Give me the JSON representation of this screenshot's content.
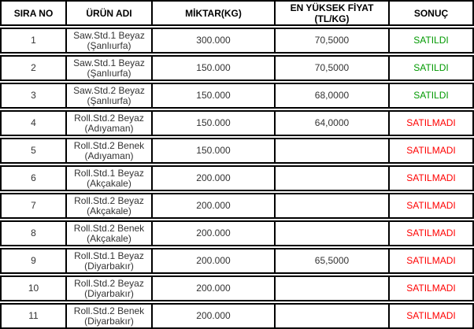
{
  "table": {
    "columns": [
      {
        "label": "SIRA NO"
      },
      {
        "label": "ÜRÜN ADI"
      },
      {
        "label": "MİKTAR(KG)"
      },
      {
        "label": "EN YÜKSEK FİYAT",
        "label2": "(TL/KG)"
      },
      {
        "label": "SONUÇ"
      }
    ],
    "rows": [
      {
        "sira": "1",
        "urun_name": "Saw.Std.1 Beyaz",
        "urun_origin": "(Şanlıurfa)",
        "miktar": "300.000",
        "fiyat": "70,5000",
        "sonuc": "SATILDI",
        "sonuc_color": "sold"
      },
      {
        "sira": "2",
        "urun_name": "Saw.Std.1 Beyaz",
        "urun_origin": "(Şanlıurfa)",
        "miktar": "150.000",
        "fiyat": "70,5000",
        "sonuc": "SATILDI",
        "sonuc_color": "sold"
      },
      {
        "sira": "3",
        "urun_name": "Saw.Std.2 Beyaz",
        "urun_origin": "(Şanlıurfa)",
        "miktar": "150.000",
        "fiyat": "68,0000",
        "sonuc": "SATILDI",
        "sonuc_color": "sold"
      },
      {
        "sira": "4",
        "urun_name": "Roll.Std.2 Beyaz",
        "urun_origin": "(Adıyaman)",
        "miktar": "150.000",
        "fiyat": "64,0000",
        "sonuc": "SATILMADI",
        "sonuc_color": "unsold"
      },
      {
        "sira": "5",
        "urun_name": "Roll.Std.2 Benek",
        "urun_origin": "(Adıyaman)",
        "miktar": "150.000",
        "fiyat": "",
        "sonuc": "SATILMADI",
        "sonuc_color": "unsold"
      },
      {
        "sira": "6",
        "urun_name": "Roll.Std.1 Beyaz",
        "urun_origin": "(Akçakale)",
        "miktar": "200.000",
        "fiyat": "",
        "sonuc": "SATILMADI",
        "sonuc_color": "unsold"
      },
      {
        "sira": "7",
        "urun_name": "Roll.Std.2 Beyaz",
        "urun_origin": "(Akçakale)",
        "miktar": "200.000",
        "fiyat": "",
        "sonuc": "SATILMADI",
        "sonuc_color": "unsold"
      },
      {
        "sira": "8",
        "urun_name": "Roll.Std.2 Benek",
        "urun_origin": "(Akçakale)",
        "miktar": "200.000",
        "fiyat": "",
        "sonuc": "SATILMADI",
        "sonuc_color": "unsold"
      },
      {
        "sira": "9",
        "urun_name": "Roll.Std.1 Beyaz",
        "urun_origin": "(Diyarbakır)",
        "miktar": "200.000",
        "fiyat": "65,5000",
        "sonuc": "SATILMADI",
        "sonuc_color": "unsold"
      },
      {
        "sira": "10",
        "urun_name": "Roll.Std.2 Beyaz",
        "urun_origin": "(Diyarbakır)",
        "miktar": "200.000",
        "fiyat": "",
        "sonuc": "SATILMADI",
        "sonuc_color": "unsold"
      },
      {
        "sira": "11",
        "urun_name": "Roll.Std.2 Benek",
        "urun_origin": "(Diyarbakır)",
        "miktar": "200.000",
        "fiyat": "",
        "sonuc": "SATILMADI",
        "sonuc_color": "unsold"
      }
    ]
  },
  "colors": {
    "sold": "#009900",
    "unsold": "#ff0000",
    "border": "#000000",
    "header_text": "#000000",
    "body_text": "#333333"
  },
  "chart_data": {
    "type": "table",
    "columns": [
      "SIRA NO",
      "ÜRÜN ADI",
      "MİKTAR(KG)",
      "EN YÜKSEK FİYAT (TL/KG)",
      "SONUÇ"
    ],
    "rows": [
      [
        "1",
        "Saw.Std.1 Beyaz (Şanlıurfa)",
        "300.000",
        "70,5000",
        "SATILDI"
      ],
      [
        "2",
        "Saw.Std.1 Beyaz (Şanlıurfa)",
        "150.000",
        "70,5000",
        "SATILDI"
      ],
      [
        "3",
        "Saw.Std.2 Beyaz (Şanlıurfa)",
        "150.000",
        "68,0000",
        "SATILDI"
      ],
      [
        "4",
        "Roll.Std.2 Beyaz (Adıyaman)",
        "150.000",
        "64,0000",
        "SATILMADI"
      ],
      [
        "5",
        "Roll.Std.2 Benek (Adıyaman)",
        "150.000",
        "",
        "SATILMADI"
      ],
      [
        "6",
        "Roll.Std.1 Beyaz (Akçakale)",
        "200.000",
        "",
        "SATILMADI"
      ],
      [
        "7",
        "Roll.Std.2 Beyaz (Akçakale)",
        "200.000",
        "",
        "SATILMADI"
      ],
      [
        "8",
        "Roll.Std.2 Benek (Akçakale)",
        "200.000",
        "",
        "SATILMADI"
      ],
      [
        "9",
        "Roll.Std.1 Beyaz (Diyarbakır)",
        "200.000",
        "65,5000",
        "SATILMADI"
      ],
      [
        "10",
        "Roll.Std.2 Beyaz (Diyarbakır)",
        "200.000",
        "",
        "SATILMADI"
      ],
      [
        "11",
        "Roll.Std.2 Benek (Diyarbakır)",
        "200.000",
        "",
        "SATILMADI"
      ]
    ],
    "legend_position": "none",
    "grid": true
  }
}
